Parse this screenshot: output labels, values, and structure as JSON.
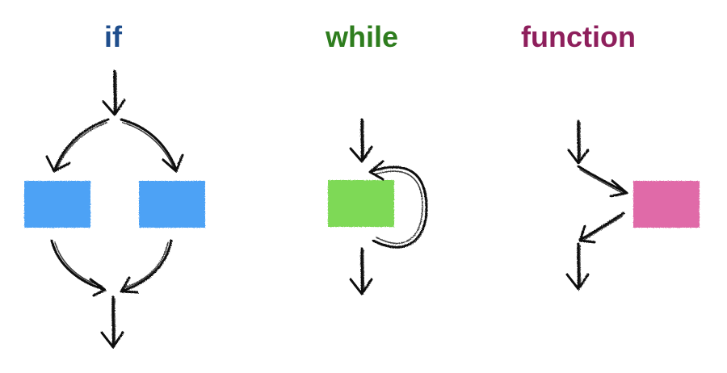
{
  "titles": {
    "if": "if",
    "while": "while",
    "function": "function"
  },
  "colors": {
    "if_title": "#1f4e8c",
    "while_title": "#2e7d1e",
    "function_title": "#8e1f5c",
    "if_box": "#4da2f5",
    "while_box": "#7ed957",
    "function_box": "#e06aa8",
    "arrow": "#111111"
  },
  "icons": {
    "arrow_style": "hand-drawn-arrow-icon"
  }
}
